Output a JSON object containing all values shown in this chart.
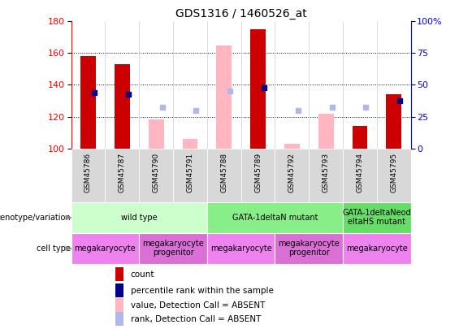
{
  "title": "GDS1316 / 1460526_at",
  "samples": [
    "GSM45786",
    "GSM45787",
    "GSM45790",
    "GSM45791",
    "GSM45788",
    "GSM45789",
    "GSM45792",
    "GSM45793",
    "GSM45794",
    "GSM45795"
  ],
  "ylim_left": [
    100,
    180
  ],
  "ylim_right": [
    0,
    100
  ],
  "yticks_left": [
    100,
    120,
    140,
    160,
    180
  ],
  "yticks_right": [
    0,
    25,
    50,
    75,
    100
  ],
  "ytick_right_labels": [
    "0",
    "25",
    "50",
    "75",
    "100%"
  ],
  "count_values": [
    158,
    153,
    null,
    null,
    null,
    175,
    null,
    null,
    114,
    134
  ],
  "percentile_values": [
    135,
    134,
    null,
    null,
    null,
    138,
    null,
    null,
    null,
    130
  ],
  "absent_value_values": [
    null,
    null,
    118,
    106,
    165,
    null,
    103,
    122,
    null,
    null
  ],
  "absent_rank_values": [
    null,
    null,
    126,
    124,
    136,
    null,
    124,
    126,
    126,
    null
  ],
  "count_color": "#cc0000",
  "percentile_color": "#00008b",
  "absent_value_color": "#ffb6c1",
  "absent_rank_color": "#b0b8e8",
  "genotype_groups": [
    {
      "label": "wild type",
      "start": 0,
      "end": 4,
      "color": "#ccffcc"
    },
    {
      "label": "GATA-1deltaN mutant",
      "start": 4,
      "end": 8,
      "color": "#88ee88"
    },
    {
      "label": "GATA-1deltaNeod\neltaHS mutant",
      "start": 8,
      "end": 10,
      "color": "#66dd66"
    }
  ],
  "cell_type_groups": [
    {
      "label": "megakaryocyte",
      "start": 0,
      "end": 2,
      "color": "#ee82ee"
    },
    {
      "label": "megakaryocyte\nprogenitor",
      "start": 2,
      "end": 4,
      "color": "#da70d6"
    },
    {
      "label": "megakaryocyte",
      "start": 4,
      "end": 6,
      "color": "#ee82ee"
    },
    {
      "label": "megakaryocyte\nprogenitor",
      "start": 6,
      "end": 8,
      "color": "#da70d6"
    },
    {
      "label": "megakaryocyte",
      "start": 8,
      "end": 10,
      "color": "#ee82ee"
    }
  ],
  "legend_items": [
    {
      "label": "count",
      "color": "#cc0000"
    },
    {
      "label": "percentile rank within the sample",
      "color": "#00008b"
    },
    {
      "label": "value, Detection Call = ABSENT",
      "color": "#ffb6c1"
    },
    {
      "label": "rank, Detection Call = ABSENT",
      "color": "#b0b8e8"
    }
  ],
  "title_fontsize": 10,
  "tick_fontsize": 8,
  "annot_fontsize": 7,
  "sample_fontsize": 6.5,
  "legend_fontsize": 7.5
}
